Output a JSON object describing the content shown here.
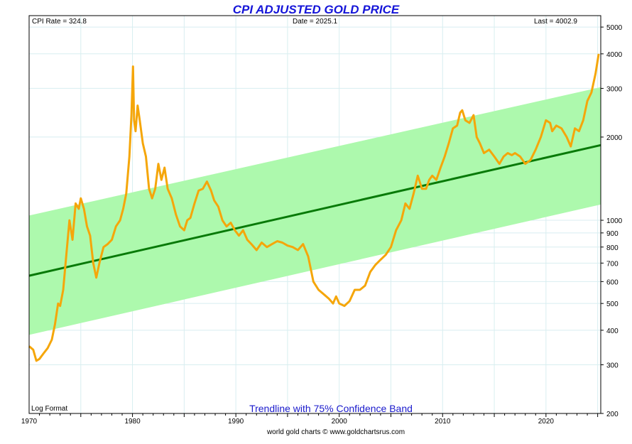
{
  "title": "CPI ADJUSTED GOLD PRICE",
  "header": {
    "cpi_rate": "CPI Rate = 324.8",
    "date": "Date = 2025.1",
    "last": "Last = 4002.9"
  },
  "footer": {
    "log_format": "Log Format",
    "band_label": "Trendline with 75% Confidence Band",
    "credit": "world gold charts © www.goldchartsrus.com"
  },
  "colors": {
    "price_line": "#f5a60a",
    "trend_line": "#087a08",
    "band_fill": "#adf9ad",
    "grid": "#d8eef0",
    "title": "#1515d8"
  },
  "chart_data": {
    "type": "line",
    "scale": "log",
    "xlim": [
      1970,
      2025.3
    ],
    "ylim": [
      200,
      5500
    ],
    "x_ticks": [
      1970,
      1980,
      1990,
      2000,
      2010,
      2020
    ],
    "y_ticks": [
      5000,
      4000,
      3000,
      2000,
      1000,
      900,
      800,
      700,
      600,
      500,
      400,
      300,
      200
    ],
    "trendline": {
      "x": [
        1970,
        2025.3
      ],
      "y": [
        630,
        1870
      ]
    },
    "band_upper": {
      "x": [
        1970,
        2025.3
      ],
      "y": [
        1040,
        3030
      ]
    },
    "band_lower": {
      "x": [
        1970,
        2025.3
      ],
      "y": [
        385,
        1140
      ]
    },
    "series": [
      {
        "x": [
          1970.0,
          1970.4,
          1970.7,
          1971.0,
          1971.4,
          1971.8,
          1972.2,
          1972.5,
          1972.8,
          1973.0,
          1973.3,
          1973.6,
          1973.9,
          1974.2,
          1974.5,
          1974.8,
          1975.0,
          1975.3,
          1975.6,
          1975.9,
          1976.2,
          1976.5,
          1976.8,
          1977.2,
          1977.6,
          1978.0,
          1978.4,
          1978.8,
          1979.1,
          1979.4,
          1979.7,
          1979.9,
          1980.05,
          1980.15,
          1980.3,
          1980.5,
          1980.7,
          1981.0,
          1981.3,
          1981.6,
          1981.9,
          1982.2,
          1982.5,
          1982.8,
          1983.1,
          1983.4,
          1983.8,
          1984.2,
          1984.6,
          1985.0,
          1985.3,
          1985.6,
          1986.0,
          1986.4,
          1986.8,
          1987.2,
          1987.6,
          1987.9,
          1988.3,
          1988.7,
          1989.1,
          1989.5,
          1989.9,
          1990.3,
          1990.7,
          1991.1,
          1991.5,
          1992.0,
          1992.5,
          1993.0,
          1993.5,
          1994.0,
          1994.5,
          1995.0,
          1995.5,
          1996.0,
          1996.5,
          1997.0,
          1997.5,
          1998.0,
          1998.5,
          1999.0,
          1999.4,
          1999.7,
          2000.0,
          2000.5,
          2001.0,
          2001.5,
          2002.0,
          2002.5,
          2003.0,
          2003.5,
          2004.0,
          2004.5,
          2005.0,
          2005.5,
          2006.0,
          2006.4,
          2006.8,
          2007.2,
          2007.6,
          2008.0,
          2008.4,
          2008.7,
          2009.0,
          2009.4,
          2009.8,
          2010.2,
          2010.6,
          2011.0,
          2011.4,
          2011.7,
          2011.9,
          2012.2,
          2012.6,
          2013.0,
          2013.3,
          2013.6,
          2014.0,
          2014.5,
          2015.0,
          2015.5,
          2015.9,
          2016.3,
          2016.7,
          2017.0,
          2017.5,
          2018.0,
          2018.5,
          2019.0,
          2019.5,
          2020.0,
          2020.4,
          2020.6,
          2021.0,
          2021.5,
          2022.0,
          2022.4,
          2022.8,
          2023.2,
          2023.6,
          2024.0,
          2024.4,
          2024.8,
          2025.1
        ],
        "y": [
          350,
          340,
          310,
          315,
          330,
          345,
          370,
          420,
          500,
          490,
          560,
          750,
          1000,
          850,
          1150,
          1100,
          1200,
          1100,
          950,
          880,
          700,
          620,
          700,
          800,
          820,
          850,
          950,
          1000,
          1100,
          1250,
          1700,
          2400,
          3600,
          2300,
          2100,
          2600,
          2300,
          1900,
          1700,
          1300,
          1200,
          1300,
          1600,
          1400,
          1550,
          1300,
          1200,
          1050,
          950,
          920,
          1000,
          1020,
          1150,
          1280,
          1300,
          1380,
          1280,
          1180,
          1120,
          1000,
          950,
          980,
          920,
          880,
          920,
          850,
          820,
          780,
          830,
          800,
          820,
          840,
          830,
          810,
          800,
          780,
          820,
          740,
          600,
          560,
          540,
          520,
          500,
          530,
          500,
          490,
          510,
          560,
          560,
          580,
          650,
          690,
          720,
          750,
          800,
          920,
          1000,
          1150,
          1100,
          1250,
          1450,
          1300,
          1300,
          1400,
          1450,
          1400,
          1550,
          1700,
          1900,
          2150,
          2200,
          2450,
          2500,
          2300,
          2250,
          2400,
          2000,
          1900,
          1750,
          1800,
          1700,
          1600,
          1700,
          1750,
          1720,
          1750,
          1700,
          1600,
          1650,
          1800,
          2000,
          2300,
          2250,
          2100,
          2200,
          2150,
          2000,
          1850,
          2150,
          2100,
          2300,
          2700,
          2900,
          3400,
          4000
        ]
      }
    ]
  }
}
